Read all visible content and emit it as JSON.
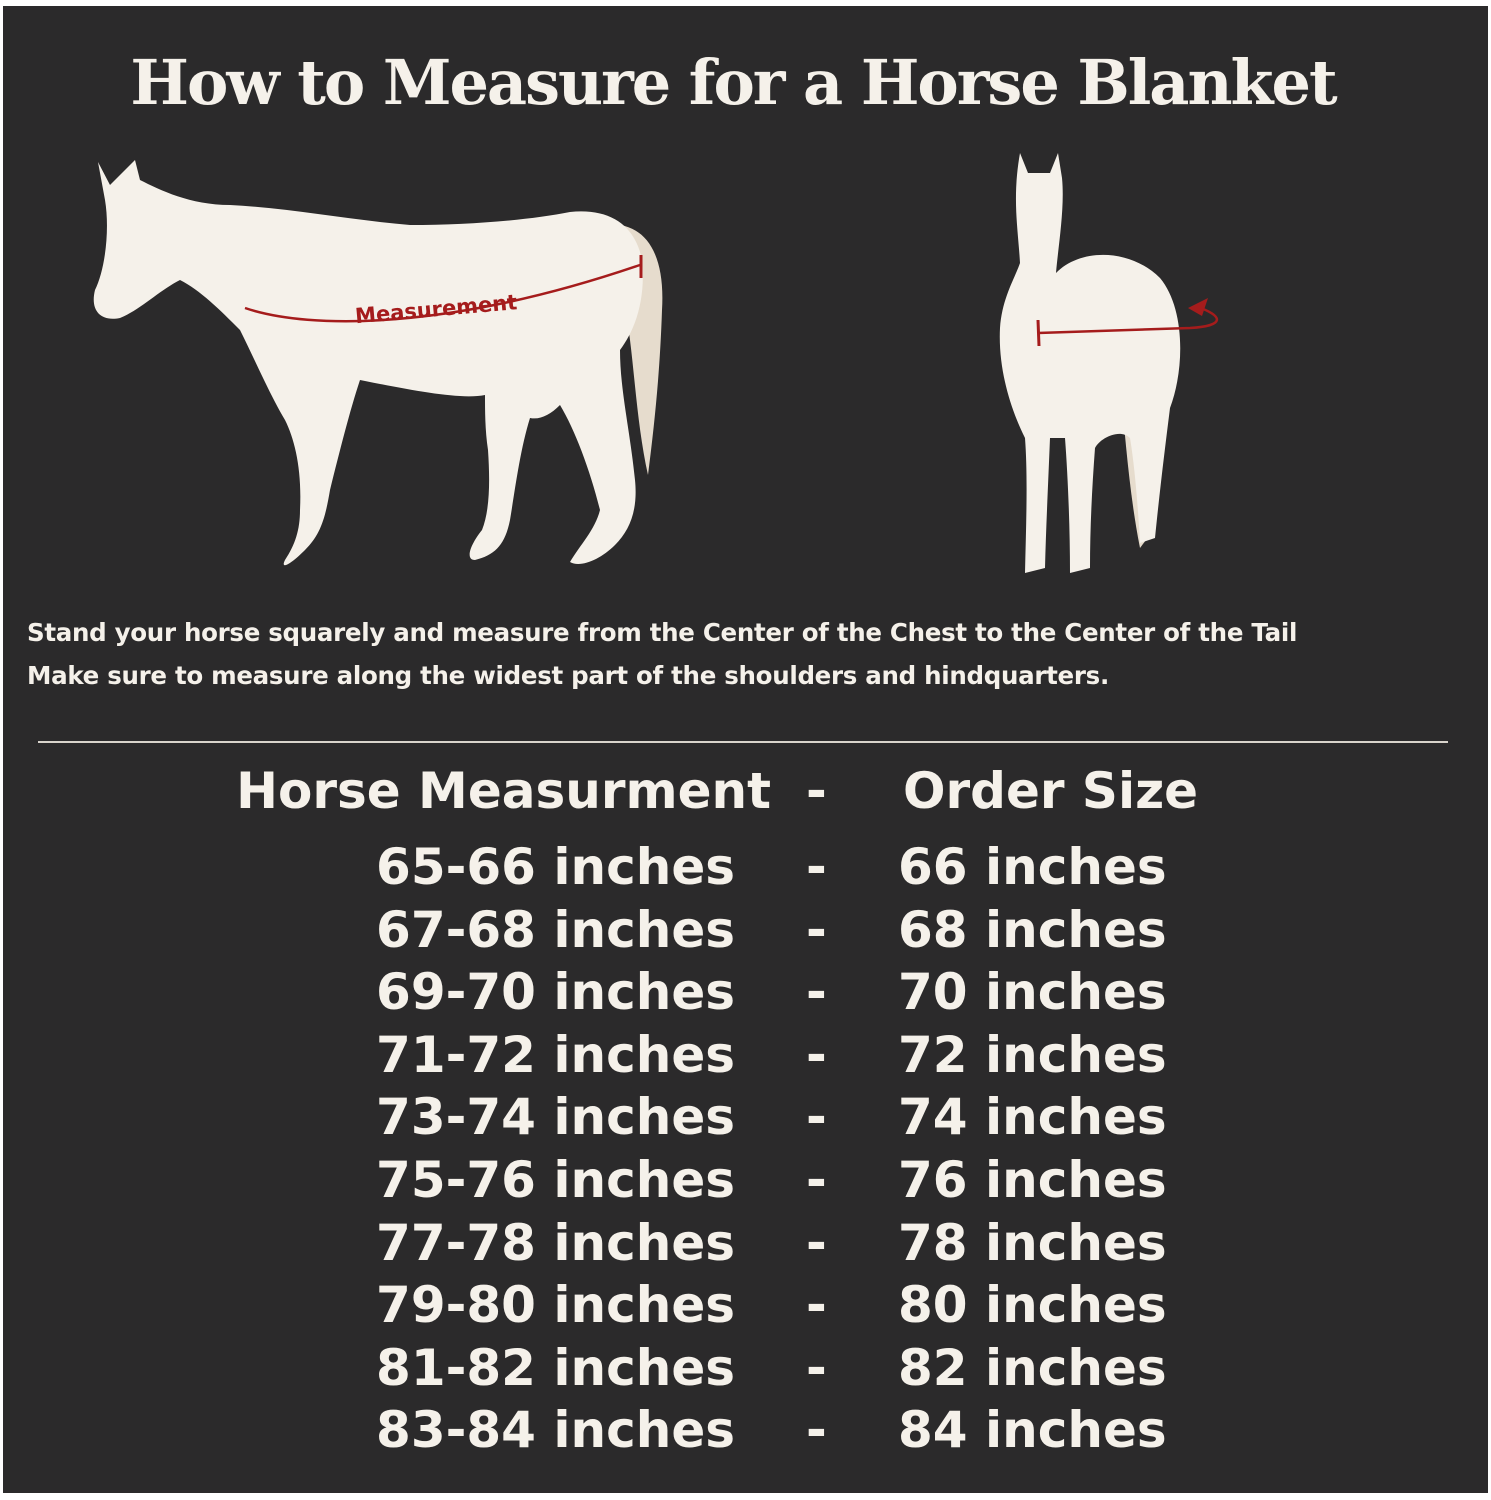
{
  "title": "How to Measure for a Horse Blanket",
  "diagram": {
    "measurement_label": "Measurement",
    "colors": {
      "background": "#2b2a2b",
      "horse": "#f5f1ea",
      "tail": "#e6dccd",
      "measure_line": "#a51c1c"
    }
  },
  "instructions": [
    "Stand your horse squarely and measure from the Center of the Chest to the Center of the Tail",
    "Make sure to measure along the widest part of the shoulders and hindquarters."
  ],
  "table": {
    "header": {
      "measurement": "Horse Measurment",
      "separator": "-",
      "size": "Order Size"
    },
    "rows": [
      {
        "measurement": "65-66 inches",
        "separator": "-",
        "size": "66 inches"
      },
      {
        "measurement": "67-68 inches",
        "separator": "-",
        "size": "68 inches"
      },
      {
        "measurement": "69-70 inches",
        "separator": "-",
        "size": "70 inches"
      },
      {
        "measurement": "71-72 inches",
        "separator": "-",
        "size": "72 inches"
      },
      {
        "measurement": "73-74 inches",
        "separator": "-",
        "size": "74 inches"
      },
      {
        "measurement": "75-76 inches",
        "separator": "-",
        "size": "76 inches"
      },
      {
        "measurement": "77-78 inches",
        "separator": "-",
        "size": "78 inches"
      },
      {
        "measurement": "79-80 inches",
        "separator": "-",
        "size": "80 inches"
      },
      {
        "measurement": "81-82 inches",
        "separator": "-",
        "size": "82 inches"
      },
      {
        "measurement": "83-84 inches",
        "separator": "-",
        "size": "84 inches"
      }
    ]
  }
}
